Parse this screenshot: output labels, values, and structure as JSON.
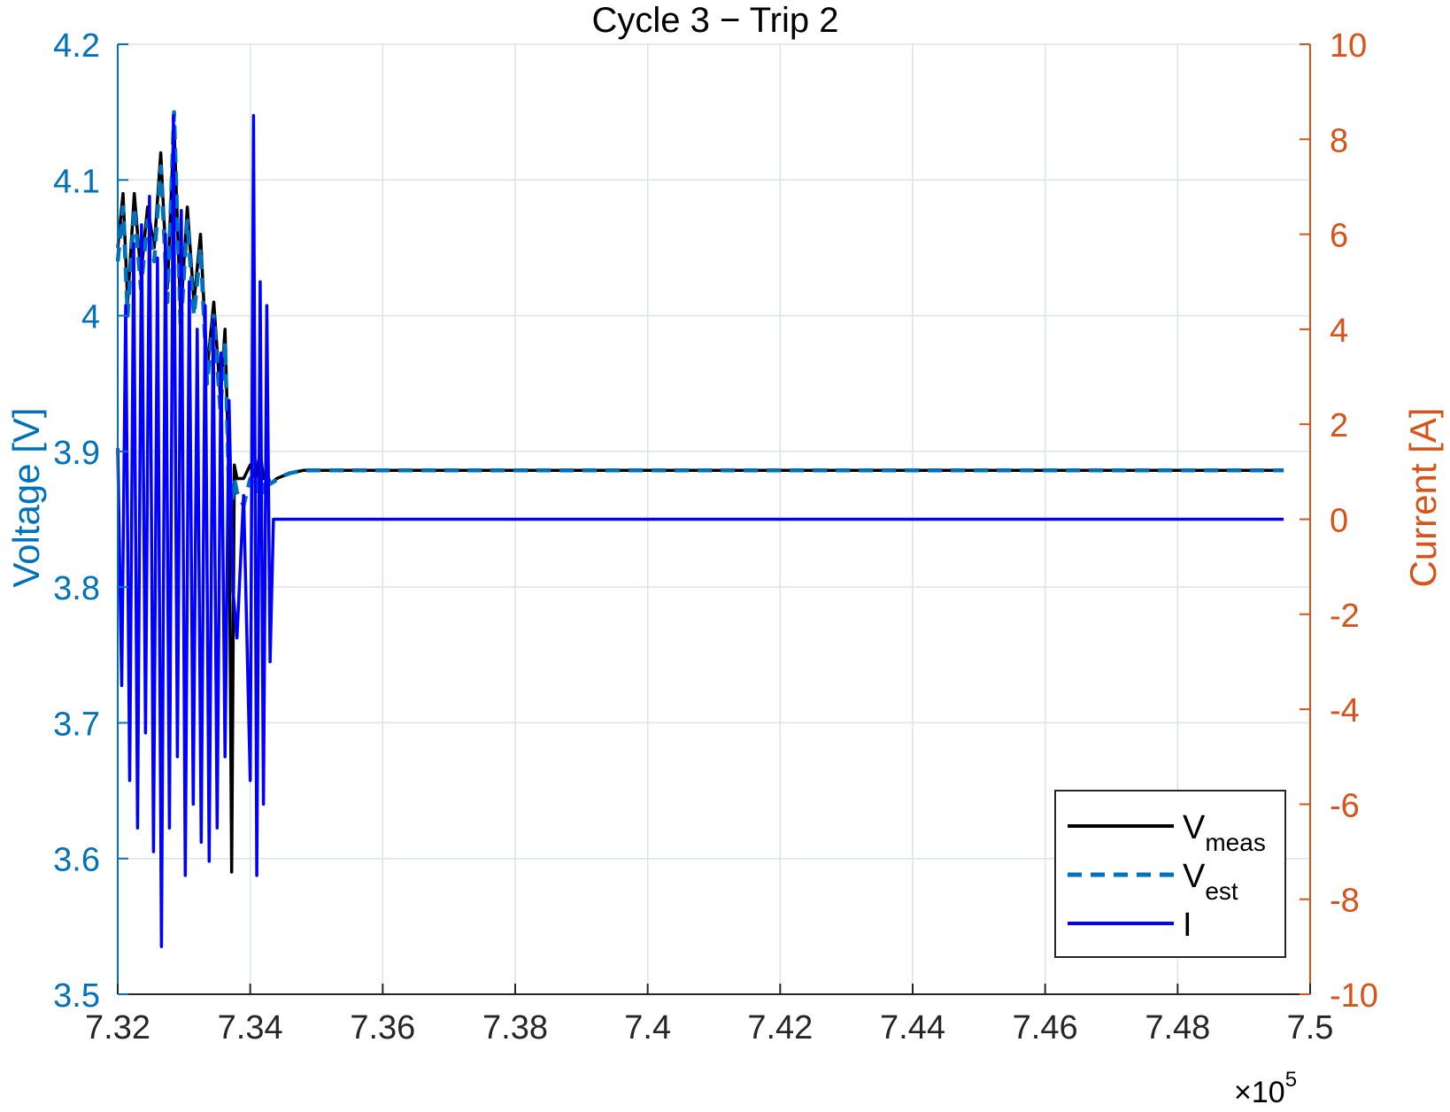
{
  "chart_data": {
    "type": "line",
    "title": "Cycle 3 − Trip 2",
    "xlim": [
      732000,
      750000
    ],
    "x_tick_labels": [
      "7.32",
      "7.34",
      "7.36",
      "7.38",
      "7.4",
      "7.42",
      "7.44",
      "7.46",
      "7.48",
      "7.5"
    ],
    "x_exponent_label": "×10",
    "x_exponent_power": "5",
    "y_left": {
      "label": "Voltage [V]",
      "lim": [
        3.5,
        4.2
      ],
      "tick_labels": [
        "3.5",
        "3.6",
        "3.7",
        "3.8",
        "3.9",
        "4",
        "4.1",
        "4.2"
      ],
      "color": "#0072BD"
    },
    "y_right": {
      "label": "Current [A]",
      "lim": [
        -10,
        10
      ],
      "tick_labels": [
        "-10",
        "-8",
        "-6",
        "-4",
        "-2",
        "0",
        "2",
        "4",
        "6",
        "8",
        "10"
      ],
      "color": "#D95319"
    },
    "grid": true,
    "legend_position": "bottom-right",
    "series": [
      {
        "name": "V",
        "subscript": "meas",
        "axis": "left",
        "color": "#000000",
        "style": "solid",
        "x": [
          732000,
          732080,
          732150,
          732250,
          732350,
          732450,
          732550,
          732650,
          732750,
          732850,
          732950,
          733050,
          733150,
          733250,
          733350,
          733450,
          733550,
          733620,
          733680,
          733720,
          733760,
          733800,
          733900,
          734000,
          734080,
          734150,
          734200,
          734250,
          734300,
          734400,
          734500,
          734600,
          734700,
          734800,
          735000,
          740000,
          745000,
          749600
        ],
        "y": [
          4.05,
          4.09,
          4.01,
          4.09,
          4.03,
          4.08,
          4.05,
          4.12,
          4.02,
          4.14,
          4.0,
          4.08,
          4.01,
          4.06,
          3.96,
          4.01,
          3.94,
          3.99,
          3.88,
          3.59,
          3.89,
          3.88,
          3.88,
          3.89,
          3.88,
          3.9,
          3.88,
          3.885,
          3.876,
          3.88,
          3.882,
          3.884,
          3.885,
          3.886,
          3.886,
          3.886,
          3.886,
          3.886
        ]
      },
      {
        "name": "V",
        "subscript": "est",
        "axis": "left",
        "color": "#0072BD",
        "style": "dashed",
        "x": [
          732000,
          732080,
          732150,
          732250,
          732350,
          732450,
          732550,
          732650,
          732750,
          732850,
          732950,
          733050,
          733150,
          733250,
          733350,
          733450,
          733550,
          733620,
          733680,
          733720,
          733760,
          733800,
          733900,
          734000,
          734080,
          734150,
          734200,
          734250,
          734300,
          734400,
          734500,
          734600,
          734700,
          734800,
          735000,
          740000,
          745000,
          749600
        ],
        "y": [
          4.04,
          4.08,
          4.0,
          4.08,
          4.02,
          4.07,
          4.04,
          4.11,
          4.01,
          4.15,
          3.99,
          4.07,
          4.0,
          4.05,
          3.95,
          4.0,
          3.93,
          3.98,
          3.87,
          3.86,
          3.88,
          3.87,
          3.86,
          3.88,
          3.87,
          3.89,
          3.87,
          3.88,
          3.876,
          3.879,
          3.882,
          3.884,
          3.885,
          3.886,
          3.886,
          3.886,
          3.886,
          3.886
        ]
      },
      {
        "name": "I",
        "subscript": "",
        "axis": "right",
        "color": "#0000FF",
        "style": "solid",
        "x": [
          732000,
          732060,
          732120,
          732180,
          732240,
          732300,
          732360,
          732420,
          732480,
          732540,
          732600,
          732660,
          732720,
          732780,
          732840,
          732900,
          732960,
          733020,
          733080,
          733140,
          733200,
          733260,
          733320,
          733380,
          733440,
          733500,
          733560,
          733620,
          733680,
          733740,
          733800,
          733900,
          734000,
          734050,
          734100,
          734150,
          734200,
          734250,
          734300,
          734350,
          734400,
          735000,
          740000,
          745000,
          749600
        ],
        "y": [
          1.5,
          -3.5,
          4.5,
          -5.5,
          5.8,
          -6.5,
          6.2,
          -4.5,
          6.8,
          -7.0,
          5.5,
          -9.0,
          6.0,
          -6.5,
          8.5,
          -5.0,
          6.5,
          -7.5,
          5.0,
          -6.0,
          4.0,
          -6.8,
          4.5,
          -7.2,
          4.2,
          -6.5,
          3.5,
          -5.0,
          2.5,
          -1.5,
          -2.5,
          0.5,
          -5.5,
          8.5,
          -7.5,
          5.0,
          -6.0,
          4.5,
          -3.0,
          0.0,
          0.0,
          0.0,
          0.0,
          0.0,
          0.0
        ]
      }
    ]
  }
}
